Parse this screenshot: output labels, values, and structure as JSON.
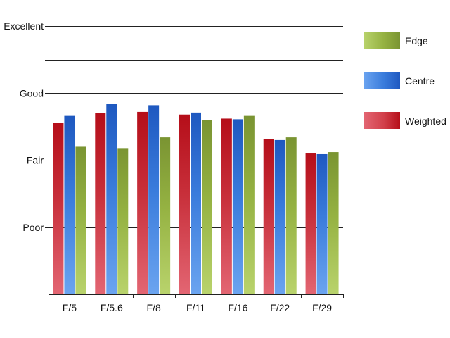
{
  "chart_data": {
    "type": "bar",
    "title": "",
    "xlabel": "",
    "ylabel": "",
    "y_tick_labels": [
      "Poor",
      "Fair",
      "Good",
      "Excellent"
    ],
    "y_tick_values": [
      1,
      2,
      3,
      4
    ],
    "ylim": [
      0,
      4
    ],
    "grid": true,
    "legend_position": "right",
    "categories": [
      "F/5",
      "F/5.6",
      "F/8",
      "F/11",
      "F/16",
      "F/22",
      "F/29"
    ],
    "series": [
      {
        "name": "Weighted",
        "color": "#b8101c",
        "values": [
          2.56,
          2.7,
          2.72,
          2.68,
          2.62,
          2.31,
          2.11
        ]
      },
      {
        "name": "Centre",
        "color": "#1f5fc8",
        "values": [
          2.66,
          2.84,
          2.82,
          2.71,
          2.61,
          2.3,
          2.1
        ]
      },
      {
        "name": "Edge",
        "color": "#7d9b2e",
        "values": [
          2.2,
          2.18,
          2.34,
          2.6,
          2.66,
          2.34,
          2.12
        ]
      }
    ],
    "legend_order": [
      "Edge",
      "Centre",
      "Weighted"
    ]
  }
}
